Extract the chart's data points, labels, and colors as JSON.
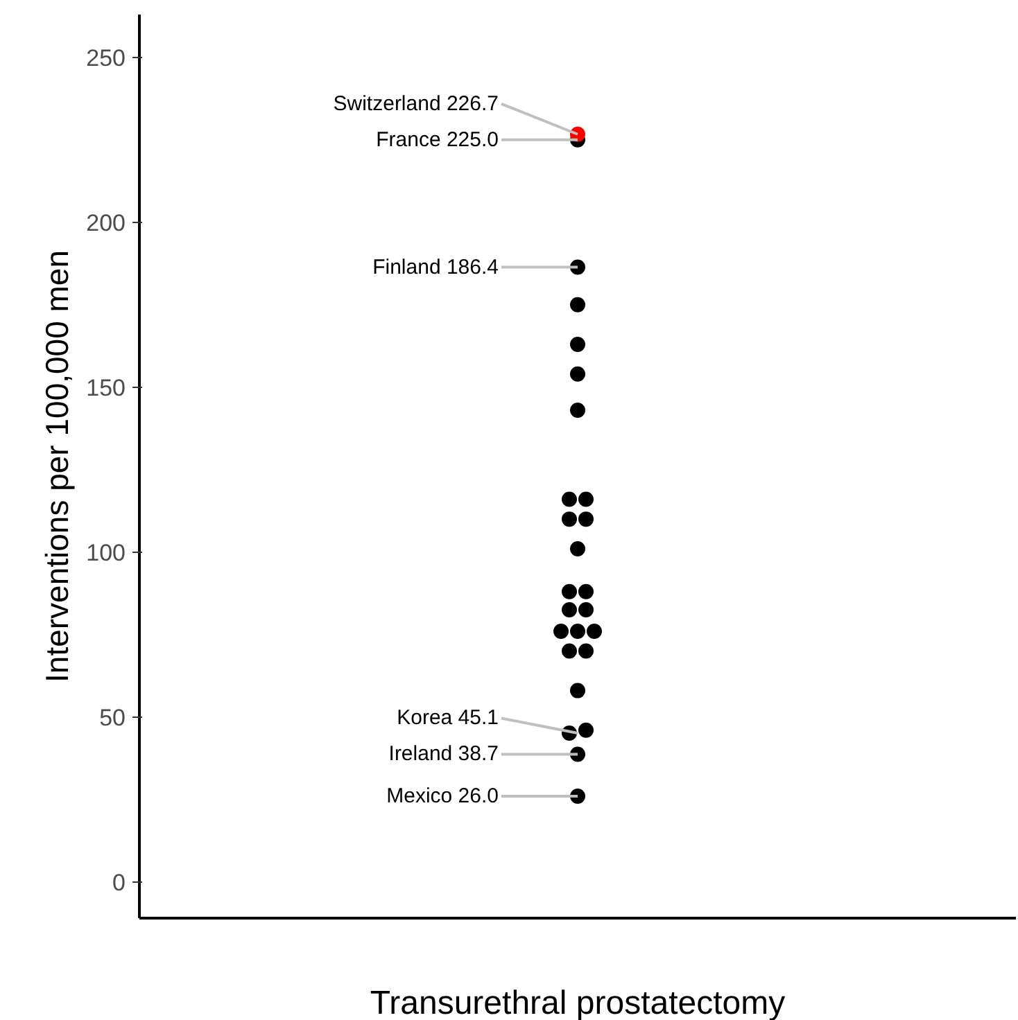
{
  "chart_data": {
    "type": "scatter",
    "categories": [
      "Transurethral prostatectomy"
    ],
    "ylabel": "Interventions per 100,000 men",
    "series": [
      {
        "x": [
          "Transurethral prostatectomy",
          "Transurethral prostatectomy",
          "Transurethral prostatectomy",
          "Transurethral prostatectomy",
          "Transurethral prostatectomy",
          "Transurethral prostatectomy",
          "Transurethral prostatectomy",
          "Transurethral prostatectomy",
          "Transurethral prostatectomy",
          "Transurethral prostatectomy",
          "Transurethral prostatectomy",
          "Transurethral prostatectomy",
          "Transurethral prostatectomy",
          "Transurethral prostatectomy",
          "Transurethral prostatectomy",
          "Transurethral prostatectomy",
          "Transurethral prostatectomy",
          "Transurethral prostatectomy",
          "Transurethral prostatectomy",
          "Transurethral prostatectomy",
          "Transurethral prostatectomy",
          "Transurethral prostatectomy",
          "Transurethral prostatectomy",
          "Transurethral prostatectomy",
          "Transurethral prostatectomy",
          "Transurethral prostatectomy"
        ],
        "values": [
          225.0,
          186.4,
          175,
          163,
          154,
          143,
          116,
          116,
          110,
          110,
          101,
          88,
          88,
          82.5,
          82.5,
          76,
          76,
          76,
          70,
          70,
          58,
          45.1,
          46,
          38.7,
          26.0,
          226.7
        ],
        "colors": [
          "#000000",
          "#000000",
          "#000000",
          "#000000",
          "#000000",
          "#000000",
          "#000000",
          "#000000",
          "#000000",
          "#000000",
          "#000000",
          "#000000",
          "#000000",
          "#000000",
          "#000000",
          "#000000",
          "#000000",
          "#000000",
          "#000000",
          "#000000",
          "#000000",
          "#000000",
          "#000000",
          "#000000",
          "#000000",
          "#ff0000"
        ]
      }
    ],
    "annotations": [
      {
        "text": "Switzerland 226.7",
        "x": "Transurethral prostatectomy",
        "y": 226.7
      },
      {
        "text": "France 225.0",
        "x": "Transurethral prostatectomy",
        "y": 225.0
      },
      {
        "text": "Finland 186.4",
        "x": "Transurethral prostatectomy",
        "y": 186.4
      },
      {
        "text": "Korea 45.1",
        "x": "Transurethral prostatectomy",
        "y": 45.1
      },
      {
        "text": "Ireland 38.7",
        "x": "Transurethral prostatectomy",
        "y": 38.7
      },
      {
        "text": "Mexico 26.0",
        "x": "Transurethral prostatectomy",
        "y": 26.0
      }
    ],
    "ylim": [
      -11,
      263
    ],
    "yticks": [
      0,
      50,
      100,
      150,
      200,
      250
    ],
    "grid": false,
    "marker": "circle"
  }
}
